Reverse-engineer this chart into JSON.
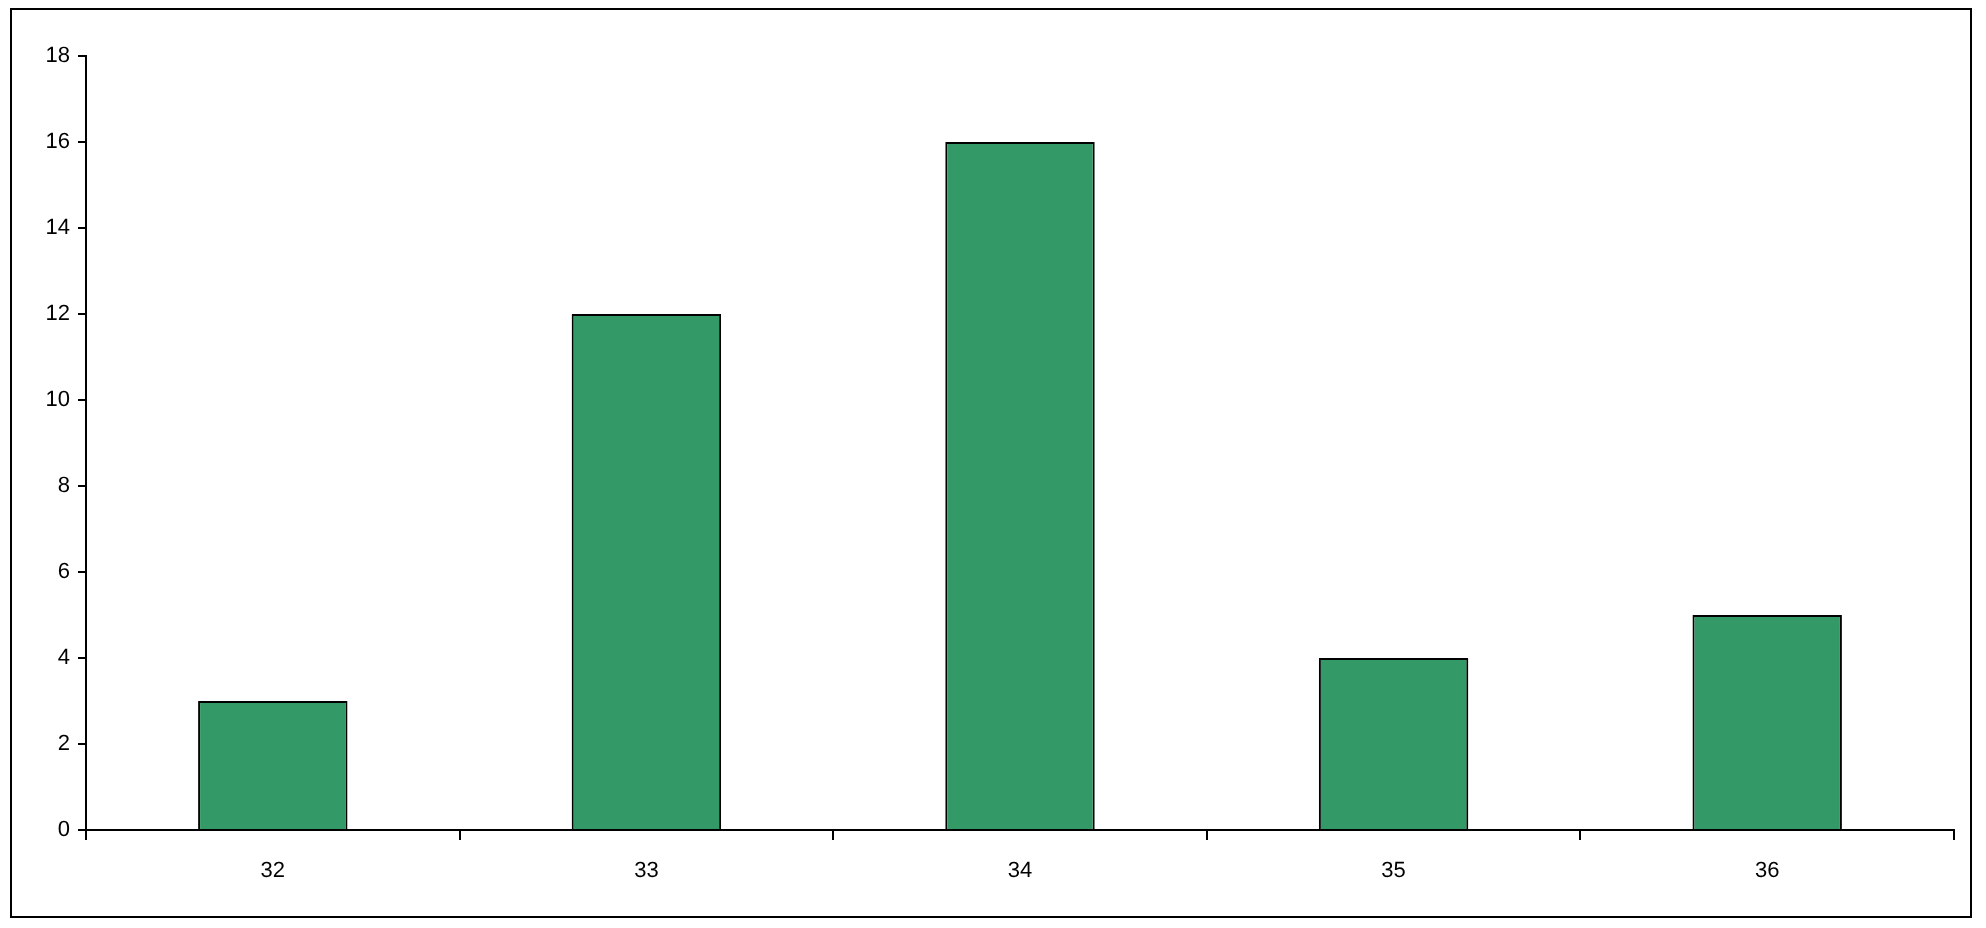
{
  "chart_data": {
    "type": "bar",
    "categories": [
      "32",
      "33",
      "34",
      "35",
      "36"
    ],
    "values": [
      3,
      12,
      16,
      4,
      5
    ],
    "color": "#339966",
    "ylim": [
      0,
      18
    ],
    "yticks": [
      0,
      2,
      4,
      6,
      8,
      10,
      12,
      14,
      16,
      18
    ]
  }
}
